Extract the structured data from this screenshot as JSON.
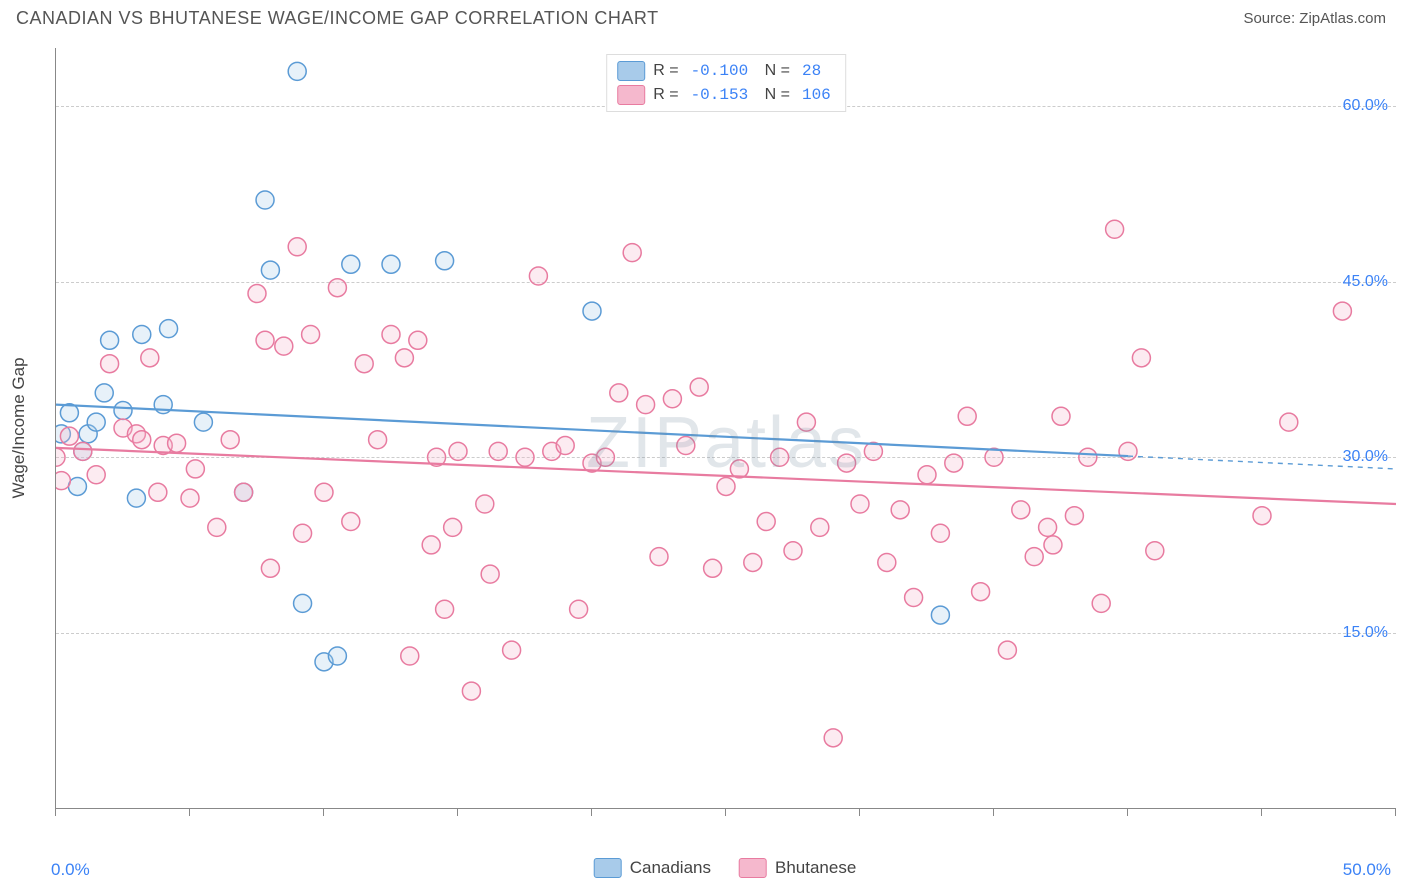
{
  "header": {
    "title": "CANADIAN VS BHUTANESE WAGE/INCOME GAP CORRELATION CHART",
    "source_label": "Source: ZipAtlas.com"
  },
  "watermark": "ZIPatlas",
  "chart": {
    "type": "scatter",
    "yaxis_title": "Wage/Income Gap",
    "background_color": "#ffffff",
    "grid_color": "#cccccc",
    "axis_color": "#888888",
    "label_color_blue": "#3b82f6",
    "xlim": [
      0,
      50
    ],
    "ylim": [
      0,
      65
    ],
    "x_ticks": [
      0,
      5,
      10,
      15,
      20,
      25,
      30,
      35,
      40,
      45,
      50
    ],
    "x_tick_labels": {
      "0": "0.0%",
      "50": "50.0%"
    },
    "y_gridlines": [
      15,
      30,
      45,
      60
    ],
    "y_tick_labels": {
      "15": "15.0%",
      "30": "30.0%",
      "45": "45.0%",
      "60": "60.0%"
    },
    "marker_radius": 9,
    "marker_stroke_width": 1.5,
    "marker_fill_opacity": 0.28,
    "trend_line_width": 2.2,
    "series": [
      {
        "name": "Canadians",
        "color_stroke": "#5b9bd5",
        "color_fill": "#a8cbea",
        "r_value": "-0.100",
        "n_value": "28",
        "trend": {
          "y_at_xmin": 34.5,
          "y_at_xmax": 29.0,
          "solid_until_x": 40
        },
        "points": [
          [
            0.2,
            32.0
          ],
          [
            0.5,
            33.8
          ],
          [
            0.8,
            27.5
          ],
          [
            1.0,
            30.5
          ],
          [
            1.2,
            32.0
          ],
          [
            1.5,
            33.0
          ],
          [
            1.8,
            35.5
          ],
          [
            2.0,
            40.0
          ],
          [
            2.5,
            34.0
          ],
          [
            3.0,
            26.5
          ],
          [
            3.2,
            40.5
          ],
          [
            4.0,
            34.5
          ],
          [
            4.2,
            41.0
          ],
          [
            5.5,
            33.0
          ],
          [
            7.0,
            27.0
          ],
          [
            7.8,
            52.0
          ],
          [
            8.0,
            46.0
          ],
          [
            9.0,
            63.0
          ],
          [
            9.2,
            17.5
          ],
          [
            10.0,
            12.5
          ],
          [
            10.5,
            13.0
          ],
          [
            11.0,
            46.5
          ],
          [
            12.5,
            46.5
          ],
          [
            14.5,
            46.8
          ],
          [
            20.0,
            42.5
          ],
          [
            33.0,
            16.5
          ]
        ]
      },
      {
        "name": "Bhutanese",
        "color_stroke": "#e87ba0",
        "color_fill": "#f5b8cd",
        "r_value": "-0.153",
        "n_value": "106",
        "trend": {
          "y_at_xmin": 30.8,
          "y_at_xmax": 26.0,
          "solid_until_x": 50
        },
        "points": [
          [
            0.0,
            30.0
          ],
          [
            0.2,
            28.0
          ],
          [
            0.5,
            31.8
          ],
          [
            1.0,
            30.5
          ],
          [
            1.5,
            28.5
          ],
          [
            2.0,
            38.0
          ],
          [
            2.5,
            32.5
          ],
          [
            3.0,
            32.0
          ],
          [
            3.2,
            31.5
          ],
          [
            3.5,
            38.5
          ],
          [
            3.8,
            27.0
          ],
          [
            4.0,
            31.0
          ],
          [
            4.5,
            31.2
          ],
          [
            5.0,
            26.5
          ],
          [
            5.2,
            29.0
          ],
          [
            6.0,
            24.0
          ],
          [
            6.5,
            31.5
          ],
          [
            7.0,
            27.0
          ],
          [
            7.5,
            44.0
          ],
          [
            7.8,
            40.0
          ],
          [
            8.0,
            20.5
          ],
          [
            8.5,
            39.5
          ],
          [
            9.0,
            48.0
          ],
          [
            9.2,
            23.5
          ],
          [
            9.5,
            40.5
          ],
          [
            10.0,
            27.0
          ],
          [
            10.5,
            44.5
          ],
          [
            11.0,
            24.5
          ],
          [
            11.5,
            38.0
          ],
          [
            12.0,
            31.5
          ],
          [
            12.5,
            40.5
          ],
          [
            13.0,
            38.5
          ],
          [
            13.2,
            13.0
          ],
          [
            13.5,
            40.0
          ],
          [
            14.0,
            22.5
          ],
          [
            14.2,
            30.0
          ],
          [
            14.5,
            17.0
          ],
          [
            14.8,
            24.0
          ],
          [
            15.0,
            30.5
          ],
          [
            15.5,
            10.0
          ],
          [
            16.0,
            26.0
          ],
          [
            16.2,
            20.0
          ],
          [
            16.5,
            30.5
          ],
          [
            17.0,
            13.5
          ],
          [
            17.5,
            30.0
          ],
          [
            18.0,
            45.5
          ],
          [
            18.5,
            30.5
          ],
          [
            19.0,
            31.0
          ],
          [
            19.5,
            17.0
          ],
          [
            20.0,
            29.5
          ],
          [
            20.5,
            30.0
          ],
          [
            21.0,
            35.5
          ],
          [
            21.5,
            47.5
          ],
          [
            22.0,
            34.5
          ],
          [
            22.5,
            21.5
          ],
          [
            23.0,
            35.0
          ],
          [
            23.5,
            31.0
          ],
          [
            24.0,
            36.0
          ],
          [
            24.5,
            20.5
          ],
          [
            25.0,
            27.5
          ],
          [
            25.5,
            29.0
          ],
          [
            26.0,
            21.0
          ],
          [
            26.5,
            24.5
          ],
          [
            27.0,
            30.0
          ],
          [
            27.5,
            22.0
          ],
          [
            28.0,
            33.0
          ],
          [
            28.5,
            24.0
          ],
          [
            29.0,
            6.0
          ],
          [
            29.5,
            29.5
          ],
          [
            30.0,
            26.0
          ],
          [
            30.5,
            30.5
          ],
          [
            31.0,
            21.0
          ],
          [
            31.5,
            25.5
          ],
          [
            32.0,
            18.0
          ],
          [
            32.5,
            28.5
          ],
          [
            33.0,
            23.5
          ],
          [
            33.5,
            29.5
          ],
          [
            34.0,
            33.5
          ],
          [
            34.5,
            18.5
          ],
          [
            35.0,
            30.0
          ],
          [
            35.5,
            13.5
          ],
          [
            36.0,
            25.5
          ],
          [
            36.5,
            21.5
          ],
          [
            37.0,
            24.0
          ],
          [
            37.2,
            22.5
          ],
          [
            37.5,
            33.5
          ],
          [
            38.0,
            25.0
          ],
          [
            38.5,
            30.0
          ],
          [
            39.0,
            17.5
          ],
          [
            39.5,
            49.5
          ],
          [
            40.0,
            30.5
          ],
          [
            40.5,
            38.5
          ],
          [
            41.0,
            22.0
          ],
          [
            45.0,
            25.0
          ],
          [
            46.0,
            33.0
          ],
          [
            48.0,
            42.5
          ]
        ]
      }
    ]
  },
  "legend_bottom": [
    {
      "label": "Canadians",
      "stroke": "#5b9bd5",
      "fill": "#a8cbea"
    },
    {
      "label": "Bhutanese",
      "stroke": "#e87ba0",
      "fill": "#f5b8cd"
    }
  ]
}
